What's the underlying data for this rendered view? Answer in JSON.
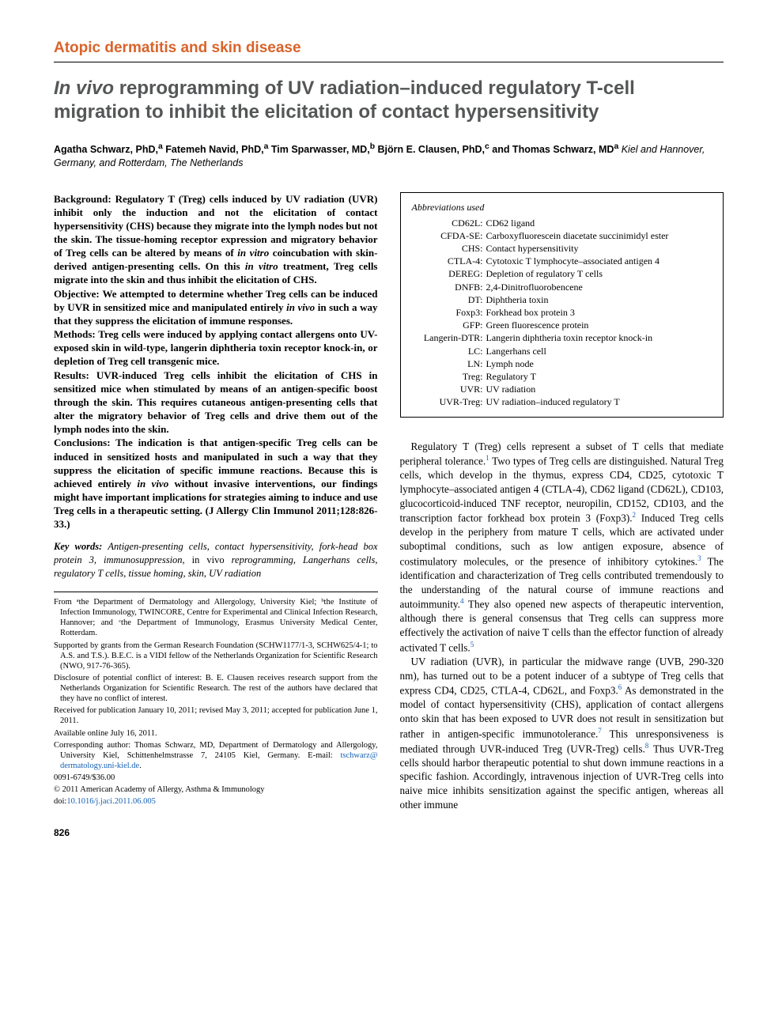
{
  "section_header": "Atopic dermatitis and skin disease",
  "title_italic": "In vivo",
  "title_rest": " reprogramming of UV radiation–induced regulatory T-cell migration to inhibit the elicitation of contact hypersensitivity",
  "authors_html": "Agatha Schwarz, PhD,<sup>a</sup> Fatemeh Navid, PhD,<sup>a</sup> Tim Sparwasser, MD,<sup>b</sup> Björn E. Clausen, PhD,<sup>c</sup> and Thomas Schwarz, MD<sup>a</sup>",
  "authors_loc": "   Kiel and Hannover, Germany, and Rotterdam, The Netherlands",
  "abstract": {
    "background": "Background: Regulatory T (Treg) cells induced by UV radiation (UVR) inhibit only the induction and not the elicitation of contact hypersensitivity (CHS) because they migrate into the lymph nodes but not the skin. The tissue-homing receptor expression and migratory behavior of Treg cells can be altered by means of ",
    "background_i1": "in vitro",
    "background_mid": " coincubation with skin-derived antigen-presenting cells. On this ",
    "background_i2": "in vitro",
    "background_end": " treatment, Treg cells migrate into the skin and thus inhibit the elicitation of CHS.",
    "objective": "Objective: We attempted to determine whether Treg cells can be induced by UVR in sensitized mice and manipulated entirely ",
    "objective_i": "in vivo",
    "objective_end": " in such a way that they suppress the elicitation of immune responses.",
    "methods": "Methods: Treg cells were induced by applying contact allergens onto UV-exposed skin in wild-type, langerin diphtheria toxin receptor knock-in, or depletion of Treg cell transgenic mice.",
    "results": "Results: UVR-induced Treg cells inhibit the elicitation of CHS in sensitized mice when stimulated by means of an antigen-specific boost through the skin. This requires cutaneous antigen-presenting cells that alter the migratory behavior of Treg cells and drive them out of the lymph nodes into the skin.",
    "conclusions": "Conclusions: The indication is that antigen-specific Treg cells can be induced in sensitized hosts and manipulated in such a way that they suppress the elicitation of specific immune reactions. Because this is achieved entirely ",
    "conclusions_i": "in vivo",
    "conclusions_end": " without invasive interventions, our findings might have important implications for strategies aiming to induce and use Treg cells in a therapeutic setting. (J Allergy Clin Immunol 2011;128:826-33.)"
  },
  "keywords_lead": "Key words: ",
  "keywords_body": "Antigen-presenting cells, contact hypersensitivity, fork-head box protein 3, immunosuppression, ",
  "keywords_roman": "in vivo",
  "keywords_tail": " reprogramming, Langerhans cells, regulatory T cells, tissue homing, skin, UV radiation",
  "footnotes": {
    "from": "From ᵃthe Department of Dermatology and Allergology, University Kiel; ᵇthe Institute of Infection Immunology, TWINCORE, Centre for Experimental and Clinical Infection Research, Hannover; and ᶜthe Department of Immunology, Erasmus University Medical Center, Rotterdam.",
    "supported": "Supported by grants from the German Research Foundation (SCHW1177/1-3, SCHW625/4-1; to A.S. and T.S.). B.E.C. is a VIDI fellow of the Netherlands Organization for Scientific Research (NWO, 917-76-365).",
    "disclosure": "Disclosure of potential conflict of interest: B. E. Clausen receives research support from the Netherlands Organization for Scientific Research. The rest of the authors have declared that they have no conflict of interest.",
    "received": "Received for publication January 10, 2011; revised May 3, 2011; accepted for publication June 1, 2011.",
    "available": "Available online July 16, 2011.",
    "corresponding_pre": "Corresponding author: Thomas Schwarz, MD, Department of Dermatology and Allergology, University Kiel, Schittenhelmstrasse 7, 24105 Kiel, Germany. E-mail: ",
    "email1": "tschwarz@",
    "email2": "dermatology.uni-kiel.de",
    "code": "0091-6749/$36.00",
    "copyright": "© 2011 American Academy of Allergy, Asthma & Immunology",
    "doi_pre": "doi:",
    "doi": "10.1016/j.jaci.2011.06.005"
  },
  "abbr_header": "Abbreviations used",
  "abbr": [
    {
      "k": "CD62L:",
      "v": "CD62 ligand"
    },
    {
      "k": "CFDA-SE:",
      "v": "Carboxyfluorescein diacetate succinimidyl ester"
    },
    {
      "k": "CHS:",
      "v": "Contact hypersensitivity"
    },
    {
      "k": "CTLA-4:",
      "v": "Cytotoxic T lymphocyte–associated antigen 4"
    },
    {
      "k": "DEREG:",
      "v": "Depletion of regulatory T cells"
    },
    {
      "k": "DNFB:",
      "v": "2,4-Dinitrofluorobencene"
    },
    {
      "k": "DT:",
      "v": "Diphtheria toxin"
    },
    {
      "k": "Foxp3:",
      "v": "Forkhead box protein 3"
    },
    {
      "k": "GFP:",
      "v": "Green fluorescence protein"
    },
    {
      "k": "Langerin-DTR:",
      "v": "Langerin diphtheria toxin receptor knock-in"
    },
    {
      "k": "LC:",
      "v": "Langerhans cell"
    },
    {
      "k": "LN:",
      "v": "Lymph node"
    },
    {
      "k": "Treg:",
      "v": "Regulatory T"
    },
    {
      "k": "UVR:",
      "v": "UV radiation"
    },
    {
      "k": "UVR-Treg:",
      "v": "UV radiation–induced regulatory T"
    }
  ],
  "body": {
    "p1_a": "Regulatory T (Treg) cells represent a subset of T cells that mediate peripheral tolerance.",
    "p1_r1": "1",
    "p1_b": " Two types of Treg cells are distinguished. Natural Treg cells, which develop in the thymus, express CD4, CD25, cytotoxic T lymphocyte–associated antigen 4 (CTLA-4), CD62 ligand (CD62L), CD103, glucocorticoid-induced TNF receptor, neuropilin, CD152, CD103, and the transcription factor forkhead box protein 3 (Foxp3).",
    "p1_r2": "2",
    "p1_c": " Induced Treg cells develop in the periphery from mature T cells, which are activated under suboptimal conditions, such as low antigen exposure, absence of costimulatory molecules, or the presence of inhibitory cytokines.",
    "p1_r3": "3",
    "p1_d": " The identification and characterization of Treg cells contributed tremendously to the understanding of the natural course of immune reactions and autoimmunity.",
    "p1_r4": "4",
    "p1_e": " They also opened new aspects of therapeutic intervention, although there is general consensus that Treg cells can suppress more effectively the activation of naive T cells than the effector function of already activated T cells.",
    "p1_r5": "5",
    "p2_a": "UV radiation (UVR), in particular the midwave range (UVB, 290-320 nm), has turned out to be a potent inducer of a subtype of Treg cells that express CD4, CD25, CTLA-4, CD62L, and Foxp3.",
    "p2_r6": "6",
    "p2_b": " As demonstrated in the model of contact hypersensitivity (CHS), application of contact allergens onto skin that has been exposed to UVR does not result in sensitization but rather in antigen-specific immunotolerance.",
    "p2_r7": "7",
    "p2_c": " This unresponsiveness is mediated through UVR-induced Treg (UVR-Treg) cells.",
    "p2_r8": "8",
    "p2_d": " Thus UVR-Treg cells should harbor therapeutic potential to shut down immune reactions in a specific fashion. Accordingly, intravenous injection of UVR-Treg cells into naive mice inhibits sensitization against the specific antigen, whereas all other immune"
  },
  "page_number": "826",
  "colors": {
    "accent": "#d9632a",
    "title": "#545657",
    "link": "#1560b3"
  }
}
